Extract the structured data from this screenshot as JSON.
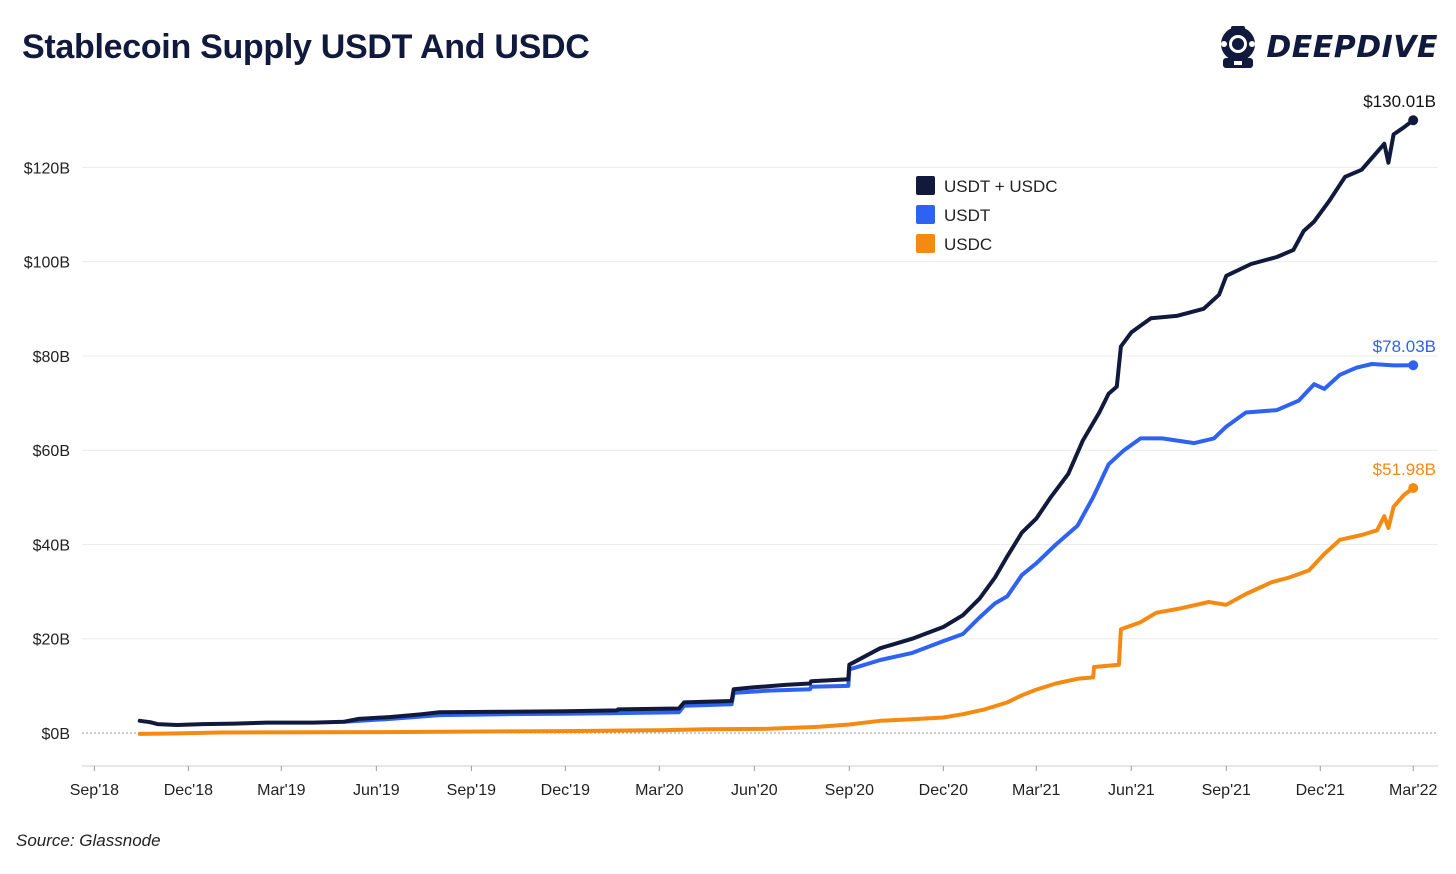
{
  "header": {
    "title": "Stablecoin Supply USDT And USDC",
    "logo_text": "DEEPDIVE"
  },
  "footer": {
    "source": "Source: Glassnode"
  },
  "colors": {
    "total": "#111a3d",
    "usdt": "#2e62f2",
    "usdc": "#f58a12",
    "grid": "#ececec",
    "zero_line": "#999999"
  },
  "chart_data": {
    "type": "line",
    "title": "Stablecoin Supply USDT And USDC",
    "xlabel": "",
    "ylabel": "",
    "y_tick_values": [
      0,
      20,
      40,
      60,
      80,
      100,
      120
    ],
    "y_tick_labels": [
      "$0B",
      "$20B",
      "$40B",
      "$60B",
      "$80B",
      "$100B",
      "$120B"
    ],
    "ylim": [
      -7,
      136
    ],
    "x_range": [
      "2018-08-20",
      "2022-03-25"
    ],
    "x_ticks": [
      {
        "date": "2018-09-01",
        "label": "Sep'18"
      },
      {
        "date": "2018-12-01",
        "label": "Dec'18"
      },
      {
        "date": "2019-03-01",
        "label": "Mar'19"
      },
      {
        "date": "2019-06-01",
        "label": "Jun'19"
      },
      {
        "date": "2019-09-01",
        "label": "Sep'19"
      },
      {
        "date": "2019-12-01",
        "label": "Dec'19"
      },
      {
        "date": "2020-03-01",
        "label": "Mar'20"
      },
      {
        "date": "2020-06-01",
        "label": "Jun'20"
      },
      {
        "date": "2020-09-01",
        "label": "Sep'20"
      },
      {
        "date": "2020-12-01",
        "label": "Dec'20"
      },
      {
        "date": "2021-03-01",
        "label": "Mar'21"
      },
      {
        "date": "2021-06-01",
        "label": "Jun'21"
      },
      {
        "date": "2021-09-01",
        "label": "Sep'21"
      },
      {
        "date": "2021-12-01",
        "label": "Dec'21"
      },
      {
        "date": "2022-03-01",
        "label": "Mar'22"
      }
    ],
    "grid": true,
    "legend_position": "top-center",
    "series": [
      {
        "name": "USDT + USDC",
        "color": "#111a3d",
        "end_label": "$130.01B",
        "points": [
          [
            "2018-10-15",
            2.6
          ],
          [
            "2018-10-25",
            2.3
          ],
          [
            "2018-11-01",
            1.9
          ],
          [
            "2018-11-20",
            1.7
          ],
          [
            "2018-12-15",
            1.9
          ],
          [
            "2019-01-15",
            2.0
          ],
          [
            "2019-02-15",
            2.2
          ],
          [
            "2019-04-01",
            2.2
          ],
          [
            "2019-05-01",
            2.4
          ],
          [
            "2019-05-15",
            3.0
          ],
          [
            "2019-06-15",
            3.4
          ],
          [
            "2019-07-15",
            4.0
          ],
          [
            "2019-08-01",
            4.4
          ],
          [
            "2019-10-01",
            4.5
          ],
          [
            "2019-12-01",
            4.6
          ],
          [
            "2020-01-20",
            4.8
          ],
          [
            "2020-01-21",
            5.0
          ],
          [
            "2020-03-20",
            5.2
          ],
          [
            "2020-03-25",
            6.5
          ],
          [
            "2020-05-10",
            6.8
          ],
          [
            "2020-05-12",
            9.3
          ],
          [
            "2020-06-01",
            9.7
          ],
          [
            "2020-07-01",
            10.2
          ],
          [
            "2020-07-25",
            10.5
          ],
          [
            "2020-07-26",
            11.0
          ],
          [
            "2020-08-31",
            11.4
          ],
          [
            "2020-09-01",
            14.5
          ],
          [
            "2020-10-01",
            18.0
          ],
          [
            "2020-11-01",
            20.0
          ],
          [
            "2020-12-01",
            22.5
          ],
          [
            "2020-12-20",
            25.0
          ],
          [
            "2021-01-05",
            28.5
          ],
          [
            "2021-01-20",
            33.0
          ],
          [
            "2021-02-01",
            37.5
          ],
          [
            "2021-02-15",
            42.5
          ],
          [
            "2021-03-01",
            45.5
          ],
          [
            "2021-03-15",
            50.0
          ],
          [
            "2021-04-01",
            55.0
          ],
          [
            "2021-04-15",
            62.0
          ],
          [
            "2021-05-01",
            68.0
          ],
          [
            "2021-05-10",
            72.0
          ],
          [
            "2021-05-18",
            73.5
          ],
          [
            "2021-05-22",
            82.0
          ],
          [
            "2021-06-01",
            85.0
          ],
          [
            "2021-06-20",
            88.0
          ],
          [
            "2021-07-15",
            88.5
          ],
          [
            "2021-08-10",
            90.0
          ],
          [
            "2021-08-25",
            93.0
          ],
          [
            "2021-09-01",
            97.0
          ],
          [
            "2021-09-25",
            99.5
          ],
          [
            "2021-10-20",
            101.0
          ],
          [
            "2021-11-05",
            102.5
          ],
          [
            "2021-11-15",
            106.5
          ],
          [
            "2021-11-25",
            108.5
          ],
          [
            "2021-12-10",
            113.0
          ],
          [
            "2021-12-25",
            118.0
          ],
          [
            "2022-01-10",
            119.5
          ],
          [
            "2022-01-20",
            122.0
          ],
          [
            "2022-02-01",
            125.0
          ],
          [
            "2022-02-05",
            121.0
          ],
          [
            "2022-02-10",
            127.0
          ],
          [
            "2022-02-20",
            128.5
          ],
          [
            "2022-03-01",
            130.01
          ]
        ]
      },
      {
        "name": "USDT",
        "color": "#2e62f2",
        "end_label": "$78.03B",
        "points": [
          [
            "2019-05-01",
            2.4
          ],
          [
            "2019-06-15",
            3.0
          ],
          [
            "2019-08-01",
            3.8
          ],
          [
            "2019-10-01",
            4.0
          ],
          [
            "2019-12-01",
            4.1
          ],
          [
            "2020-03-20",
            4.4
          ],
          [
            "2020-03-25",
            5.8
          ],
          [
            "2020-05-10",
            6.1
          ],
          [
            "2020-05-12",
            8.5
          ],
          [
            "2020-06-15",
            9.0
          ],
          [
            "2020-07-25",
            9.3
          ],
          [
            "2020-07-26",
            9.8
          ],
          [
            "2020-08-31",
            10.0
          ],
          [
            "2020-09-01",
            13.5
          ],
          [
            "2020-10-01",
            15.5
          ],
          [
            "2020-11-01",
            17.0
          ],
          [
            "2020-12-01",
            19.5
          ],
          [
            "2020-12-20",
            21.0
          ],
          [
            "2021-01-05",
            24.5
          ],
          [
            "2021-01-20",
            27.5
          ],
          [
            "2021-02-01",
            29.0
          ],
          [
            "2021-02-15",
            33.5
          ],
          [
            "2021-03-01",
            36.0
          ],
          [
            "2021-03-20",
            40.0
          ],
          [
            "2021-04-10",
            44.0
          ],
          [
            "2021-04-25",
            50.0
          ],
          [
            "2021-05-10",
            57.0
          ],
          [
            "2021-05-25",
            60.0
          ],
          [
            "2021-06-10",
            62.5
          ],
          [
            "2021-07-01",
            62.5
          ],
          [
            "2021-08-01",
            61.5
          ],
          [
            "2021-08-20",
            62.5
          ],
          [
            "2021-09-01",
            65.0
          ],
          [
            "2021-09-20",
            68.0
          ],
          [
            "2021-10-20",
            68.5
          ],
          [
            "2021-11-10",
            70.5
          ],
          [
            "2021-11-25",
            74.0
          ],
          [
            "2021-12-05",
            73.0
          ],
          [
            "2021-12-20",
            76.0
          ],
          [
            "2022-01-05",
            77.5
          ],
          [
            "2022-01-20",
            78.3
          ],
          [
            "2022-02-10",
            78.0
          ],
          [
            "2022-03-01",
            78.03
          ]
        ]
      },
      {
        "name": "USDC",
        "color": "#f58a12",
        "end_label": "$51.98B",
        "points": [
          [
            "2018-10-15",
            -0.2
          ],
          [
            "2018-11-15",
            -0.1
          ],
          [
            "2019-01-01",
            0.1
          ],
          [
            "2019-06-01",
            0.2
          ],
          [
            "2019-12-01",
            0.4
          ],
          [
            "2020-03-01",
            0.6
          ],
          [
            "2020-04-15",
            0.8
          ],
          [
            "2020-06-15",
            0.9
          ],
          [
            "2020-08-01",
            1.3
          ],
          [
            "2020-09-01",
            1.8
          ],
          [
            "2020-10-01",
            2.6
          ],
          [
            "2020-11-01",
            2.9
          ],
          [
            "2020-12-01",
            3.3
          ],
          [
            "2020-12-20",
            4.0
          ],
          [
            "2021-01-10",
            5.0
          ],
          [
            "2021-02-01",
            6.5
          ],
          [
            "2021-02-15",
            8.0
          ],
          [
            "2021-03-01",
            9.2
          ],
          [
            "2021-03-20",
            10.5
          ],
          [
            "2021-04-10",
            11.5
          ],
          [
            "2021-04-25",
            11.8
          ],
          [
            "2021-04-26",
            14.0
          ],
          [
            "2021-05-20",
            14.5
          ],
          [
            "2021-05-22",
            22.0
          ],
          [
            "2021-06-10",
            23.5
          ],
          [
            "2021-06-25",
            25.5
          ],
          [
            "2021-07-20",
            26.5
          ],
          [
            "2021-08-15",
            27.8
          ],
          [
            "2021-09-01",
            27.2
          ],
          [
            "2021-09-20",
            29.5
          ],
          [
            "2021-10-15",
            32.0
          ],
          [
            "2021-11-01",
            33.0
          ],
          [
            "2021-11-20",
            34.5
          ],
          [
            "2021-12-05",
            38.0
          ],
          [
            "2021-12-20",
            41.0
          ],
          [
            "2022-01-10",
            42.0
          ],
          [
            "2022-01-25",
            43.0
          ],
          [
            "2022-02-01",
            46.0
          ],
          [
            "2022-02-05",
            43.5
          ],
          [
            "2022-02-10",
            48.0
          ],
          [
            "2022-02-20",
            50.5
          ],
          [
            "2022-03-01",
            51.98
          ]
        ]
      }
    ]
  }
}
